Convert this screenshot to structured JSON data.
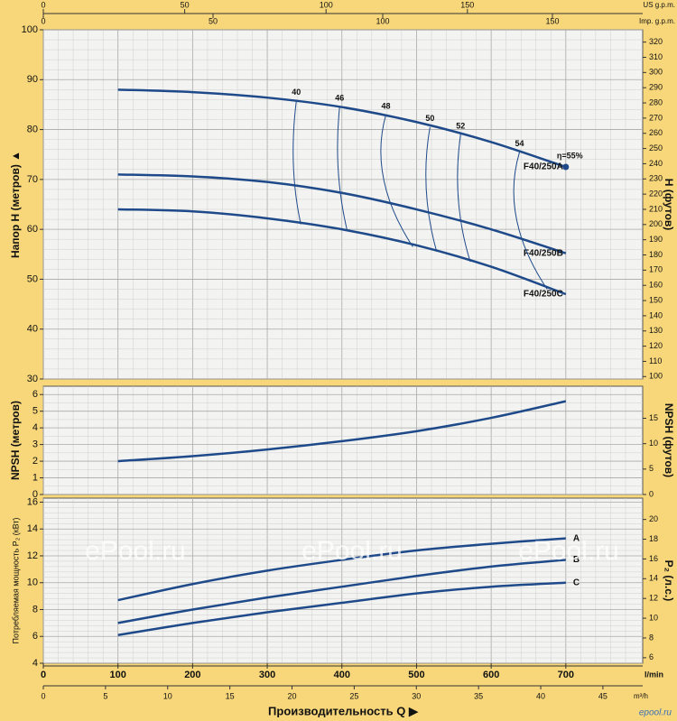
{
  "top_axes": {
    "us_gpm": {
      "label": "US g.p.m.",
      "xlim": [
        0,
        212
      ],
      "xticks": [
        0,
        50,
        100,
        150
      ]
    },
    "imp_gpm": {
      "label": "Imp. g.p.m.",
      "xlim": [
        0,
        176.6
      ],
      "xticks": [
        0,
        50,
        100,
        150
      ]
    }
  },
  "bottom_axes": {
    "title": "Производительность Q ▶",
    "m3h": {
      "label": "m³/h",
      "xlim": [
        0,
        48.2
      ],
      "xticks": [
        0,
        5,
        10,
        15,
        20,
        25,
        30,
        35,
        40,
        45
      ]
    }
  },
  "watermark": "ePool.ru",
  "logo": "epool.ru",
  "chart_data": [
    {
      "type": "line",
      "ylabel": "Напор H   (метров) ▲",
      "y2label": "H   (футов)",
      "xlim": [
        0,
        803
      ],
      "ylim": [
        30,
        100
      ],
      "yticks": [
        30,
        40,
        50,
        60,
        70,
        80,
        90,
        100
      ],
      "y2lim": [
        98.4,
        328.1
      ],
      "y2ticks": [
        100,
        110,
        120,
        130,
        140,
        150,
        160,
        170,
        180,
        190,
        200,
        210,
        220,
        230,
        240,
        250,
        260,
        270,
        280,
        290,
        300,
        310,
        320
      ],
      "grid": true,
      "label_position": "start",
      "color": "#1f4a8a",
      "x": [
        100,
        200,
        300,
        400,
        500,
        600,
        700
      ],
      "series": [
        {
          "name": "F40/250A",
          "values": [
            88,
            87.5,
            86.4,
            84.5,
            81.5,
            77.5,
            72.5
          ]
        },
        {
          "name": "F40/250B",
          "values": [
            71,
            70.6,
            69.5,
            67.3,
            64,
            60,
            55.2
          ]
        },
        {
          "name": "F40/250C",
          "values": [
            64,
            63.6,
            62.2,
            60,
            56.8,
            52.5,
            47
          ]
        }
      ],
      "efficiency": [
        {
          "label": "40",
          "x": [
            339,
            335,
            345
          ],
          "y": [
            85.8,
            73,
            61
          ]
        },
        {
          "label": "46",
          "x": [
            397,
            395,
            407
          ],
          "y": [
            84.6,
            72,
            59.8
          ]
        },
        {
          "label": "48",
          "x": [
            459,
            456,
            495
          ],
          "y": [
            83,
            70,
            56.5
          ]
        },
        {
          "label": "50",
          "x": [
            518,
            513,
            527
          ],
          "y": [
            80.5,
            68,
            55.5
          ]
        },
        {
          "label": "52",
          "x": [
            559,
            556,
            572
          ],
          "y": [
            79,
            66,
            53.5
          ]
        },
        {
          "label": "54",
          "x": [
            638,
            634,
            675
          ],
          "y": [
            75.5,
            62,
            48
          ]
        }
      ],
      "efficiency_point": {
        "label": "η=55%",
        "x": 700,
        "y": 72.5
      }
    },
    {
      "type": "line",
      "ylabel": "NPSH   (метров)",
      "y2label": "NPSH   (футов)",
      "xlim": [
        0,
        803
      ],
      "ylim": [
        0,
        6.5
      ],
      "yticks": [
        0,
        1,
        2,
        3,
        4,
        5,
        6
      ],
      "y2lim": [
        0,
        21.3
      ],
      "y2ticks": [
        0,
        5,
        10,
        15
      ],
      "grid": true,
      "color": "#1f4a8a",
      "x": [
        100,
        200,
        300,
        400,
        500,
        600,
        700
      ],
      "values": [
        2.0,
        2.3,
        2.7,
        3.2,
        3.8,
        4.6,
        5.6
      ]
    },
    {
      "type": "line",
      "ylabel": "Потребляемая мощность  P₂ (кВт)",
      "y2label": "P₂   (л.с.)",
      "xlabel": "l/min",
      "xlim": [
        0,
        803
      ],
      "xticks": [
        0,
        100,
        200,
        300,
        400,
        500,
        600,
        700
      ],
      "ylim": [
        4,
        16.3
      ],
      "yticks": [
        4,
        6,
        8,
        10,
        12,
        14,
        16
      ],
      "y2lim": [
        5.44,
        22.16
      ],
      "y2ticks": [
        6,
        8,
        10,
        12,
        14,
        16,
        18,
        20
      ],
      "grid": true,
      "label_position": "end",
      "color": "#1f4a8a",
      "x": [
        100,
        200,
        300,
        400,
        500,
        600,
        700
      ],
      "series": [
        {
          "name": "A",
          "values": [
            8.7,
            9.9,
            10.9,
            11.7,
            12.4,
            12.9,
            13.3
          ]
        },
        {
          "name": "B",
          "values": [
            7.0,
            8.0,
            8.9,
            9.7,
            10.5,
            11.2,
            11.7
          ]
        },
        {
          "name": "C",
          "values": [
            6.1,
            7.0,
            7.8,
            8.5,
            9.2,
            9.7,
            10.0
          ]
        }
      ]
    }
  ]
}
